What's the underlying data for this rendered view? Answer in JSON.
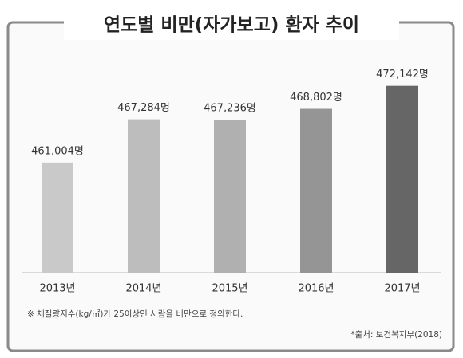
{
  "chart_data": {
    "type": "bar",
    "title": "연도별 비만(자가보고) 환자 추이",
    "categories": [
      "2013년",
      "2014년",
      "2015년",
      "2016년",
      "2017년"
    ],
    "values": [
      461004,
      467284,
      467236,
      468802,
      472142
    ],
    "value_labels": [
      "461,004명",
      "467,284명",
      "467,236명",
      "468,802명",
      "472,142명"
    ],
    "colors": [
      "#c9c9c9",
      "#bdbdbd",
      "#b0b0b0",
      "#959595",
      "#666666"
    ],
    "ylim": [
      445000,
      475000
    ],
    "footnote": "※ 체질량지수(kg/㎡)가 25이상인 사람을 비만으로 정의한다.",
    "source": "*출처: 보건복지부(2018)"
  }
}
